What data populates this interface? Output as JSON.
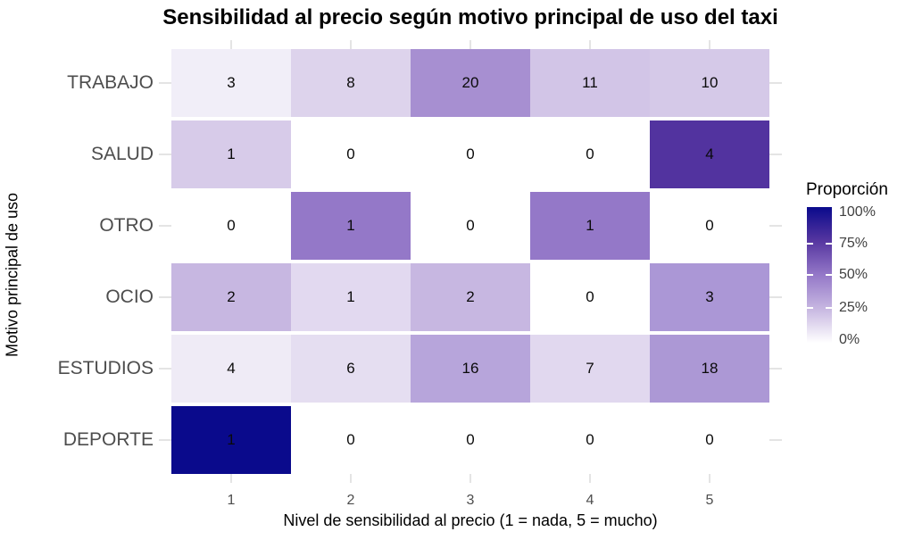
{
  "chart_data": {
    "type": "heatmap",
    "title": "Sensibilidad al precio según motivo principal de uso del taxi",
    "xlabel": "Nivel de sensibilidad al precio (1 = nada, 5 = mucho)",
    "ylabel": "Motivo principal de uso",
    "x_categories": [
      "1",
      "2",
      "3",
      "4",
      "5"
    ],
    "y_categories": [
      "TRABAJO",
      "SALUD",
      "OTRO",
      "OCIO",
      "ESTUDIOS",
      "DEPORTE"
    ],
    "grid": true,
    "rows": [
      {
        "label": "TRABAJO",
        "cells": [
          {
            "value": "3",
            "proportion": 0.058,
            "color": "#F1EEF8"
          },
          {
            "value": "8",
            "proportion": 0.154,
            "color": "#DDD3EC"
          },
          {
            "value": "20",
            "proportion": 0.385,
            "color": "#A78FD1"
          },
          {
            "value": "11",
            "proportion": 0.212,
            "color": "#D2C5E7"
          },
          {
            "value": "10",
            "proportion": 0.192,
            "color": "#D5C9E8"
          }
        ]
      },
      {
        "label": "SALUD",
        "cells": [
          {
            "value": "1",
            "proportion": 0.2,
            "color": "#D7CBE9"
          },
          {
            "value": "0",
            "proportion": 0.0,
            "color": "#FFFFFF"
          },
          {
            "value": "0",
            "proportion": 0.0,
            "color": "#FFFFFF"
          },
          {
            "value": "0",
            "proportion": 0.0,
            "color": "#FFFFFF"
          },
          {
            "value": "4",
            "proportion": 0.8,
            "color": "#52339F"
          }
        ]
      },
      {
        "label": "OTRO",
        "cells": [
          {
            "value": "0",
            "proportion": 0.0,
            "color": "#FFFFFF"
          },
          {
            "value": "1",
            "proportion": 0.5,
            "color": "#9478C8"
          },
          {
            "value": "0",
            "proportion": 0.0,
            "color": "#FFFFFF"
          },
          {
            "value": "1",
            "proportion": 0.5,
            "color": "#9478C8"
          },
          {
            "value": "0",
            "proportion": 0.0,
            "color": "#FFFFFF"
          }
        ]
      },
      {
        "label": "OCIO",
        "cells": [
          {
            "value": "2",
            "proportion": 0.25,
            "color": "#C7B7E1"
          },
          {
            "value": "1",
            "proportion": 0.125,
            "color": "#E2D9F0"
          },
          {
            "value": "2",
            "proportion": 0.25,
            "color": "#C7B7E1"
          },
          {
            "value": "0",
            "proportion": 0.0,
            "color": "#FFFFFF"
          },
          {
            "value": "3",
            "proportion": 0.375,
            "color": "#AB97D6"
          }
        ]
      },
      {
        "label": "ESTUDIOS",
        "cells": [
          {
            "value": "4",
            "proportion": 0.078,
            "color": "#EFEBF6"
          },
          {
            "value": "6",
            "proportion": 0.118,
            "color": "#E5DEF1"
          },
          {
            "value": "16",
            "proportion": 0.314,
            "color": "#B7A5DB"
          },
          {
            "value": "7",
            "proportion": 0.137,
            "color": "#E1D8EF"
          },
          {
            "value": "18",
            "proportion": 0.353,
            "color": "#AC98D5"
          }
        ]
      },
      {
        "label": "DEPORTE",
        "cells": [
          {
            "value": "1",
            "proportion": 1.0,
            "color": "#0A0A8C"
          },
          {
            "value": "0",
            "proportion": 0.0,
            "color": "#FFFFFF"
          },
          {
            "value": "0",
            "proportion": 0.0,
            "color": "#FFFFFF"
          },
          {
            "value": "0",
            "proportion": 0.0,
            "color": "#FFFFFF"
          },
          {
            "value": "0",
            "proportion": 0.0,
            "color": "#FFFFFF"
          }
        ]
      }
    ],
    "legend": {
      "title": "Proporción",
      "position": "right",
      "labels": [
        "100%",
        "75%",
        "50%",
        "25%",
        "0%"
      ],
      "gradient_stops": [
        {
          "pct": 0,
          "color": "#FFFFFF"
        },
        {
          "pct": 25,
          "color": "#C7B7E1"
        },
        {
          "pct": 50,
          "color": "#9478C8"
        },
        {
          "pct": 75,
          "color": "#5636A0"
        },
        {
          "pct": 100,
          "color": "#0A0A8C"
        }
      ]
    },
    "colors": {
      "low": "#FFFFFF",
      "high": "#0A0A8C",
      "grid": "#E4E4E4",
      "axis_text": "#4d4d4d"
    }
  }
}
